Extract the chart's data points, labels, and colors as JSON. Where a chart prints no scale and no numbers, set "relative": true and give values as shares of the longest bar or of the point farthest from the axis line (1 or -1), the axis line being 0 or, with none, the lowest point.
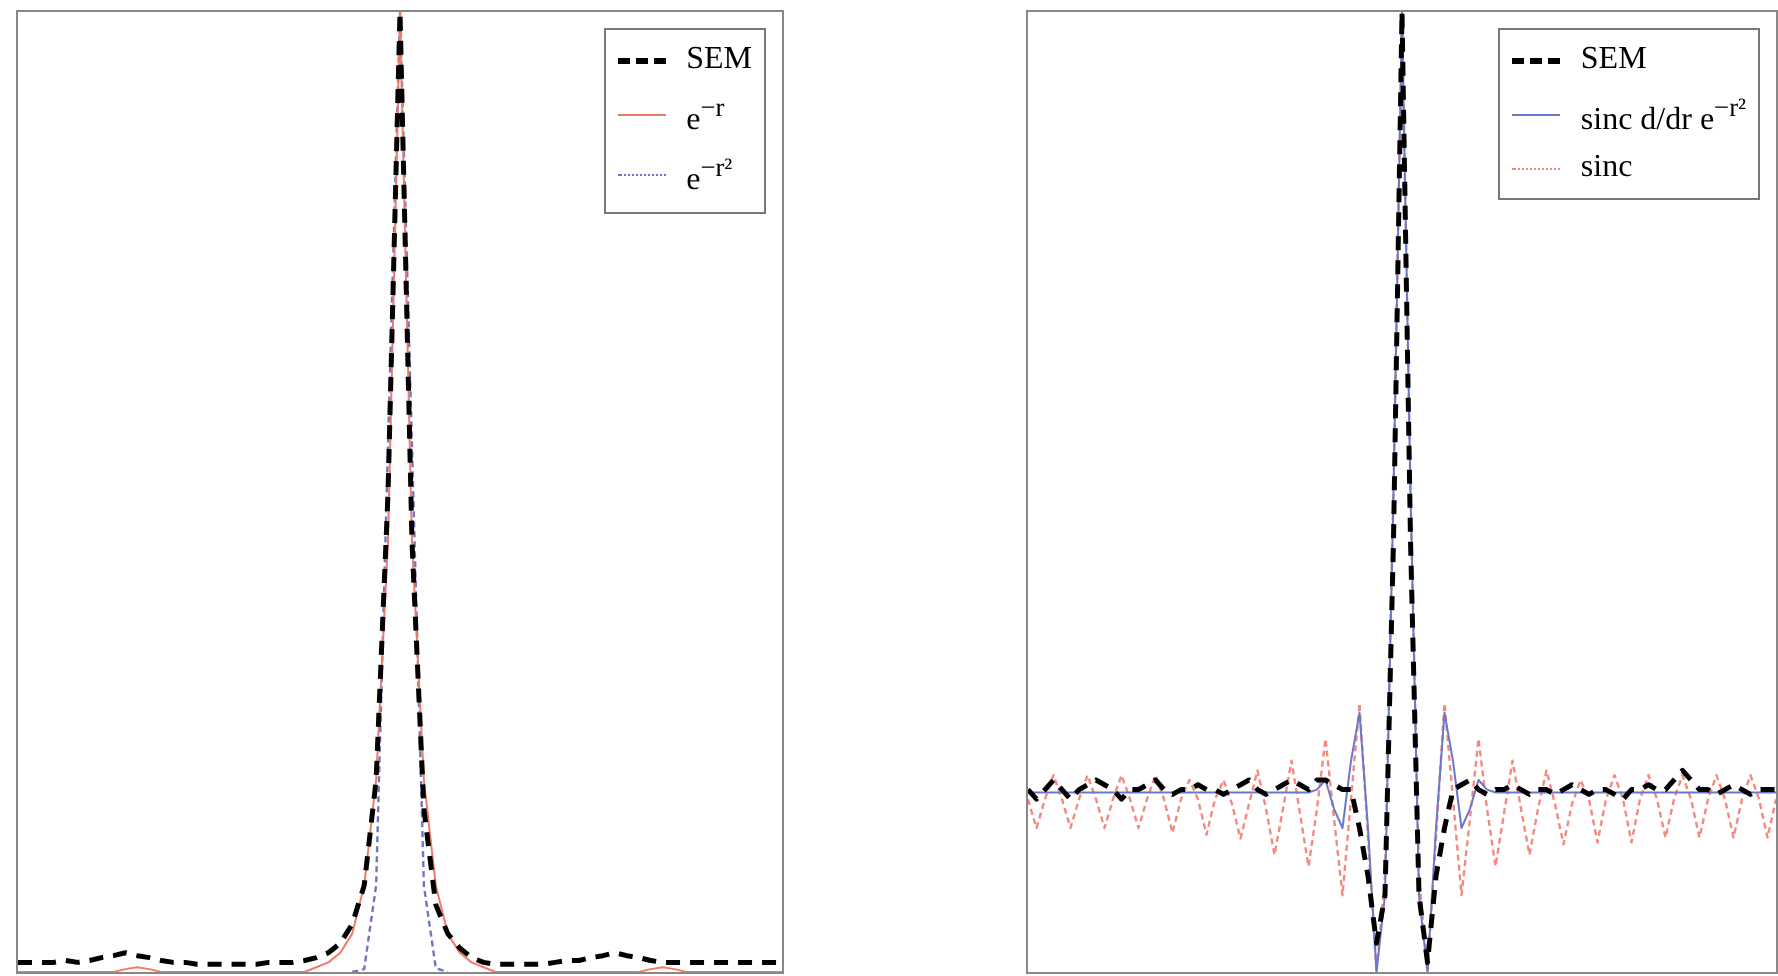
{
  "chart_data": [
    {
      "type": "line",
      "relative": true,
      "legend": "top right",
      "categories": [
        null,
        null,
        null,
        null,
        null,
        null,
        null,
        null,
        null,
        null,
        null,
        null,
        null,
        null,
        null,
        null,
        null,
        null,
        null,
        null,
        null,
        null,
        null,
        null,
        null,
        null,
        null,
        null,
        null,
        null,
        null,
        null,
        null,
        null,
        null,
        null,
        null,
        null,
        null,
        null,
        null,
        null,
        null,
        null,
        null,
        null,
        null,
        null,
        null,
        null,
        null,
        null,
        null,
        null,
        null,
        null,
        null,
        null,
        null,
        null,
        null,
        null,
        null,
        null,
        null
      ],
      "series": [
        {
          "name": "SEM",
          "color": "#000000",
          "line_style": "dashed",
          "values": [
            0.01,
            0.01,
            0.01,
            0.01,
            0.012,
            0.01,
            0.012,
            0.015,
            0.017,
            0.02,
            0.017,
            0.015,
            0.012,
            0.01,
            0.01,
            0.008,
            0.008,
            0.008,
            0.008,
            0.008,
            0.008,
            0.01,
            0.01,
            0.01,
            0.012,
            0.015,
            0.02,
            0.03,
            0.05,
            0.09,
            0.2,
            0.5,
            1,
            0.45,
            0.17,
            0.07,
            0.04,
            0.025,
            0.015,
            0.01,
            0.008,
            0.008,
            0.008,
            0.008,
            0.008,
            0.01,
            0.012,
            0.012,
            0.015,
            0.017,
            0.02,
            0.017,
            0.015,
            0.012,
            0.01,
            0.01,
            0.01,
            0.01,
            0.01,
            0.01,
            0.01,
            0.01,
            0.01,
            0.01,
            0.01
          ]
        },
        {
          "name": "e$^{−r}$",
          "color": "#f07a68",
          "line_style": "solid",
          "values": [
            0,
            0,
            0,
            0,
            0,
            0,
            0,
            0,
            0,
            0.003,
            0.005,
            0.003,
            0,
            0,
            0,
            0,
            0,
            0,
            0,
            0,
            0,
            0,
            0,
            0,
            0,
            0.005,
            0.01,
            0.02,
            0.04,
            0.09,
            0.2,
            0.45,
            1,
            0.45,
            0.2,
            0.09,
            0.04,
            0.02,
            0.01,
            0.005,
            0,
            0,
            0,
            0,
            0,
            0,
            0,
            0,
            0,
            0,
            0,
            0,
            0,
            0.003,
            0.005,
            0.003,
            0,
            0,
            0,
            0,
            0,
            0,
            0,
            0,
            0
          ]
        },
        {
          "name": "e$^{−r²}$",
          "color": "#6f74c4",
          "line_style": "dotted",
          "values": [
            null,
            null,
            null,
            null,
            null,
            null,
            null,
            null,
            null,
            null,
            null,
            null,
            null,
            null,
            null,
            null,
            null,
            null,
            null,
            null,
            null,
            null,
            null,
            null,
            null,
            null,
            null,
            null,
            0,
            0.003,
            0.09,
            0.55,
            1,
            0.55,
            0.09,
            0.004,
            0,
            null,
            null,
            null,
            null,
            null,
            null,
            null,
            null,
            null,
            null,
            null,
            null,
            null,
            null,
            null,
            null,
            null,
            null,
            null,
            null,
            null,
            null,
            null,
            null,
            null,
            null,
            null,
            null
          ]
        }
      ]
    },
    {
      "type": "line",
      "relative": true,
      "legend": "top right",
      "categories": [
        null,
        null,
        null,
        null,
        null,
        null,
        null,
        null,
        null,
        null,
        null,
        null,
        null,
        null,
        null,
        null,
        null,
        null,
        null,
        null,
        null,
        null,
        null,
        null,
        null,
        null,
        null,
        null,
        null,
        null,
        null,
        null,
        null,
        null,
        null,
        null,
        null,
        null,
        null,
        null,
        null,
        null,
        null,
        null,
        null,
        null,
        null,
        null,
        null,
        null,
        null,
        null,
        null,
        null,
        null,
        null,
        null,
        null,
        null,
        null,
        null,
        null,
        null,
        null,
        null,
        null,
        null,
        null,
        null,
        null,
        null,
        null,
        null,
        null,
        null,
        null,
        null,
        null,
        null,
        null,
        null,
        null,
        null,
        null,
        null,
        null,
        null,
        null,
        null
      ],
      "series": [
        {
          "name": "SEM",
          "color": "#000000",
          "line_style": "dashed",
          "values": [
            0.19,
            0.18,
            0.19,
            0.2,
            0.19,
            0.18,
            0.19,
            0.195,
            0.2,
            0.195,
            0.19,
            0.18,
            0.19,
            0.19,
            0.195,
            0.2,
            0.19,
            0.185,
            0.19,
            0.19,
            0.195,
            0.19,
            0.19,
            0.185,
            0.19,
            0.195,
            0.2,
            0.19,
            0.185,
            0.19,
            0.195,
            0.2,
            0.195,
            0.19,
            0.2,
            0.2,
            0.195,
            0.19,
            0.19,
            0.15,
            0.1,
            0.03,
            0.08,
            0.45,
            1,
            0.45,
            0.08,
            0.01,
            0.1,
            0.15,
            0.19,
            0.195,
            0.2,
            0.19,
            0.185,
            0.19,
            0.19,
            0.195,
            0.19,
            0.185,
            0.19,
            0.19,
            0.185,
            0.19,
            0.195,
            0.19,
            0.185,
            0.19,
            0.19,
            0.185,
            0.18,
            0.19,
            0.19,
            0.195,
            0.19,
            0.19,
            0.2,
            0.21,
            0.2,
            0.19,
            0.19,
            0.185,
            0.19,
            0.195,
            0.19,
            0.185,
            0.19,
            0.19,
            0.19
          ]
        },
        {
          "name": "sinc d/dr e$^{−r²}$",
          "color": "#6a78cc",
          "line_style": "solid",
          "values": [
            0.187,
            0.187,
            0.187,
            0.187,
            0.187,
            0.187,
            0.187,
            0.187,
            0.187,
            0.187,
            0.187,
            0.187,
            0.187,
            0.187,
            0.187,
            0.187,
            0.187,
            0.187,
            0.187,
            0.187,
            0.187,
            0.187,
            0.187,
            0.187,
            0.187,
            0.187,
            0.187,
            0.187,
            0.187,
            0.187,
            0.187,
            0.187,
            0.187,
            0.187,
            0.19,
            0.2,
            0.17,
            0.15,
            0.22,
            0.27,
            0.15,
            0,
            0.08,
            0.5,
            1,
            0.5,
            0.08,
            0,
            0.15,
            0.27,
            0.22,
            0.15,
            0.17,
            0.2,
            0.19,
            0.187,
            0.187,
            0.187,
            0.187,
            0.187,
            0.187,
            0.187,
            0.187,
            0.187,
            0.187,
            0.187,
            0.187,
            0.187,
            0.187,
            0.187,
            0.187,
            0.187,
            0.187,
            0.187,
            0.187,
            0.187,
            0.187,
            0.187,
            0.187,
            0.187,
            0.187,
            0.187,
            0.187,
            0.187,
            0.187,
            0.187,
            0.187,
            0.187,
            0.187
          ]
        },
        {
          "name": "sinc",
          "color": "#f28a80",
          "line_style": "dotted",
          "values": [
            0.18,
            0.15,
            0.18,
            0.205,
            0.18,
            0.15,
            0.18,
            0.205,
            0.18,
            0.15,
            0.18,
            0.205,
            0.18,
            0.15,
            0.18,
            0.205,
            0.18,
            0.145,
            0.18,
            0.2,
            0.18,
            0.143,
            0.18,
            0.2,
            0.175,
            0.139,
            0.175,
            0.21,
            0.17,
            0.122,
            0.17,
            0.22,
            0.165,
            0.11,
            0.17,
            0.243,
            0.16,
            0.08,
            0.18,
            0.28,
            0.14,
            0,
            0.1,
            0.5,
            1,
            0.5,
            0.1,
            0,
            0.14,
            0.28,
            0.18,
            0.08,
            0.16,
            0.243,
            0.17,
            0.11,
            0.165,
            0.22,
            0.17,
            0.122,
            0.17,
            0.21,
            0.175,
            0.133,
            0.175,
            0.2,
            0.18,
            0.135,
            0.18,
            0.205,
            0.18,
            0.135,
            0.18,
            0.205,
            0.18,
            0.14,
            0.18,
            0.205,
            0.18,
            0.14,
            0.18,
            0.205,
            0.18,
            0.14,
            0.18,
            0.205,
            0.18,
            0.14,
            0.18
          ]
        }
      ]
    }
  ]
}
